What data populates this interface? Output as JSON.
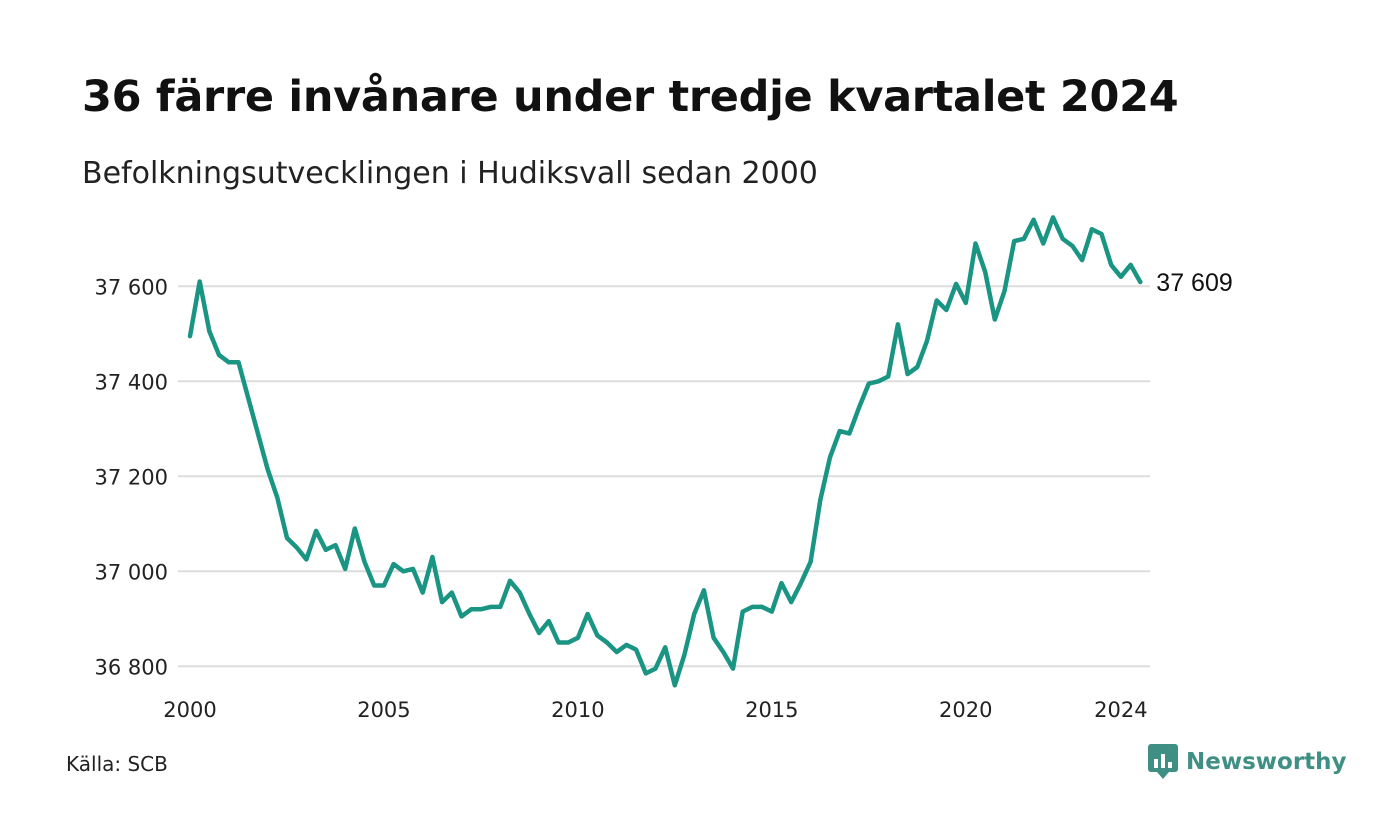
{
  "title": "36 färre invånare under tredje kvartalet 2024",
  "subtitle": "Befolkningsutvecklingen i Hudiksvall sedan 2000",
  "source": "Källa: SCB",
  "brand": {
    "name": "Newsworthy",
    "color": "#3f8f85",
    "icon": "newsworthy-chart-bubble-icon"
  },
  "chart_data": {
    "type": "line",
    "line_color": "#1a9483",
    "gridlines": true,
    "ylim": [
      36750,
      37750
    ],
    "xlim": [
      2000.0,
      2024.75
    ],
    "y_ticks": [
      36800,
      37000,
      37200,
      37400,
      37600
    ],
    "y_tick_labels": [
      "36 800",
      "37 000",
      "37 200",
      "37 400",
      "37 600"
    ],
    "x_ticks": [
      2000,
      2005,
      2010,
      2015,
      2020,
      2024
    ],
    "x_tick_labels": [
      "2000",
      "2005",
      "2010",
      "2015",
      "2020",
      "2024"
    ],
    "end_label": "37 609",
    "series": [
      {
        "start_year": 2000,
        "start_quarter": 1,
        "values": [
          37495,
          37610,
          37505,
          37455,
          37440,
          37440,
          37365,
          37290,
          37215,
          37155,
          37070,
          37050,
          37025,
          37085,
          37045,
          37055,
          37005,
          37090,
          37020,
          36970,
          36970,
          37015,
          37000,
          37005,
          36955,
          37030,
          36935,
          36955,
          36905,
          36920,
          36920,
          36925,
          36925,
          36980,
          36955,
          36910,
          36870,
          36895,
          36850,
          36850,
          36860,
          36910,
          36865,
          36850,
          36830,
          36845,
          36835,
          36785,
          36795,
          36840,
          36760,
          36825,
          36910,
          36960,
          36860,
          36830,
          36795,
          36915,
          36925,
          36925,
          36915,
          36975,
          36935,
          36975,
          37020,
          37150,
          37240,
          37295,
          37290,
          37345,
          37395,
          37400,
          37410,
          37520,
          37415,
          37430,
          37485,
          37570,
          37550,
          37605,
          37565,
          37690,
          37630,
          37530,
          37590,
          37695,
          37700,
          37740,
          37690,
          37745,
          37700,
          37685,
          37655,
          37720,
          37710,
          37645,
          37620,
          37645,
          37609
        ]
      }
    ]
  }
}
